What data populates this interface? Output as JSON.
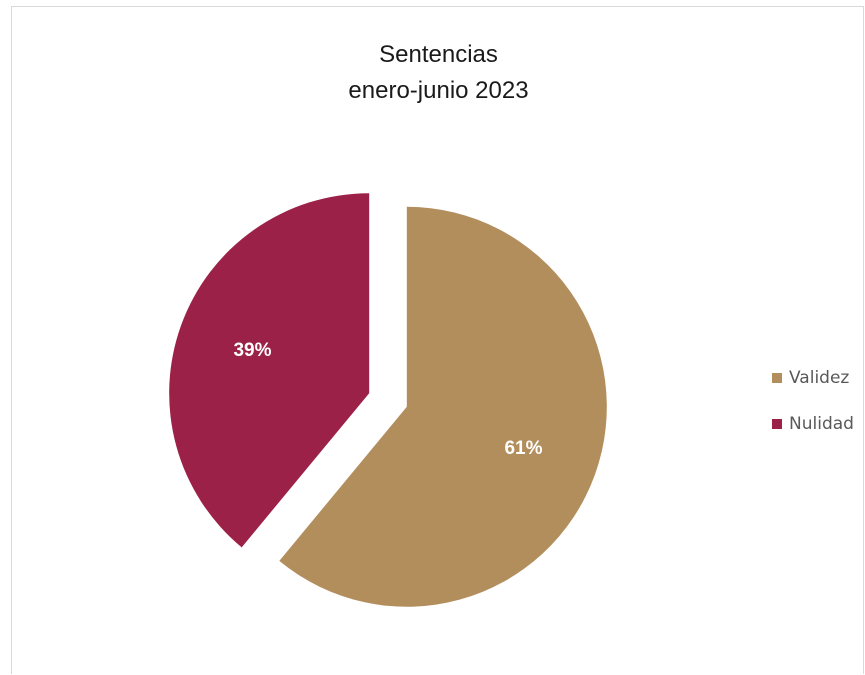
{
  "chart_data": {
    "type": "pie",
    "title": "Sentencias",
    "subtitle": "enero-junio 2023",
    "series": [
      {
        "name": "Validez",
        "value": 61,
        "label": "61%",
        "color": "#B38E5D"
      },
      {
        "name": "Nulidad",
        "value": 39,
        "label": "39%",
        "color": "#9C2148"
      }
    ],
    "legend_position": "right"
  }
}
